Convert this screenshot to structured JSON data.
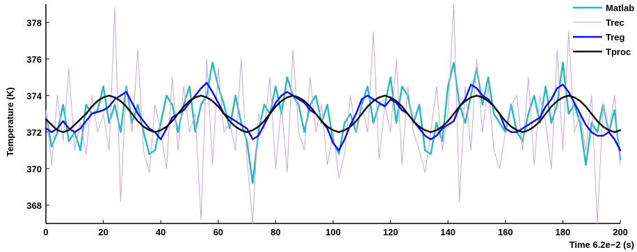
{
  "chart_data": {
    "type": "line",
    "title": "",
    "xlabel": "Time 6.2e−2 (s)",
    "ylabel": "Temperature (K)",
    "xlim": [
      0,
      200
    ],
    "ylim": [
      367,
      379
    ],
    "x_ticks": [
      "0",
      "20",
      "40",
      "60",
      "80",
      "100",
      "120",
      "140",
      "160",
      "180",
      "200"
    ],
    "y_ticks": [
      "368",
      "370",
      "372",
      "374",
      "376",
      "378"
    ],
    "grid": false,
    "legend_position": "top-right",
    "x": [
      0,
      2,
      4,
      6,
      8,
      10,
      12,
      14,
      16,
      18,
      20,
      22,
      24,
      26,
      28,
      30,
      32,
      34,
      36,
      38,
      40,
      42,
      44,
      46,
      48,
      50,
      52,
      54,
      56,
      58,
      60,
      62,
      64,
      66,
      68,
      70,
      72,
      74,
      76,
      78,
      80,
      82,
      84,
      86,
      88,
      90,
      92,
      94,
      96,
      98,
      100,
      102,
      104,
      106,
      108,
      110,
      112,
      114,
      116,
      118,
      120,
      122,
      124,
      126,
      128,
      130,
      132,
      134,
      136,
      138,
      140,
      142,
      144,
      146,
      148,
      150,
      152,
      154,
      156,
      158,
      160,
      162,
      164,
      166,
      168,
      170,
      172,
      174,
      176,
      178,
      180,
      182,
      184,
      186,
      188,
      190,
      192,
      194,
      196,
      198,
      200
    ],
    "series": [
      {
        "name": "Matlab",
        "color": "#2bb8c0",
        "width": 2.5,
        "values": [
          373.0,
          371.2,
          372.0,
          373.5,
          371.5,
          372.0,
          371.0,
          373.5,
          373.0,
          373.2,
          374.5,
          372.5,
          373.5,
          372.0,
          374.5,
          372.5,
          373.5,
          372.0,
          370.8,
          371.0,
          372.5,
          374.0,
          373.5,
          372.0,
          373.5,
          374.5,
          372.0,
          373.5,
          374.0,
          375.8,
          374.5,
          373.5,
          372.2,
          374.0,
          372.5,
          371.5,
          369.2,
          372.0,
          373.5,
          373.0,
          374.5,
          373.0,
          375.0,
          374.0,
          373.5,
          372.0,
          373.5,
          374.0,
          372.5,
          373.5,
          371.5,
          370.8,
          372.5,
          373.0,
          372.0,
          373.5,
          374.5,
          372.5,
          373.5,
          373.5,
          375.0,
          372.5,
          374.5,
          374.0,
          372.5,
          373.5,
          371.0,
          370.8,
          372.5,
          371.5,
          374.5,
          375.8,
          373.5,
          372.5,
          374.0,
          375.5,
          373.5,
          375.0,
          373.0,
          372.5,
          372.0,
          373.5,
          372.0,
          371.5,
          373.0,
          374.0,
          372.5,
          374.5,
          372.5,
          373.5,
          375.8,
          373.0,
          373.5,
          372.5,
          370.2,
          372.5,
          372.0,
          373.5,
          372.0,
          373.2,
          370.5
        ]
      },
      {
        "name": "Trec",
        "color": "#c9a6e2",
        "width": 1,
        "values": [
          373.2,
          370.2,
          374.0,
          371.5,
          375.5,
          371.0,
          372.5,
          370.8,
          374.0,
          372.0,
          373.0,
          371.0,
          378.8,
          368.2,
          374.5,
          372.0,
          376.5,
          371.0,
          369.8,
          373.5,
          372.0,
          370.0,
          375.0,
          371.0,
          374.5,
          372.0,
          373.0,
          367.2,
          376.0,
          370.2,
          375.5,
          372.0,
          372.5,
          371.0,
          376.0,
          370.5,
          367.0,
          373.0,
          372.2,
          375.0,
          370.0,
          373.5,
          369.8,
          376.5,
          372.0,
          371.0,
          375.0,
          372.0,
          373.5,
          370.2,
          372.0,
          369.5,
          370.8,
          374.0,
          372.0,
          373.5,
          372.0,
          377.5,
          370.5,
          373.5,
          372.0,
          376.0,
          370.2,
          374.5,
          372.0,
          371.0,
          369.8,
          372.0,
          374.5,
          371.0,
          373.0,
          379.0,
          368.2,
          374.5,
          371.0,
          376.0,
          372.0,
          374.5,
          371.0,
          370.0,
          372.0,
          373.5,
          374.0,
          371.0,
          375.0,
          370.2,
          374.0,
          372.5,
          370.0,
          376.5,
          371.0,
          377.5,
          372.0,
          373.0,
          371.0,
          374.0,
          367.0,
          373.5,
          372.0,
          374.0,
          370.2
        ]
      },
      {
        "name": "Treg",
        "color": "#1010ee",
        "width": 2.5,
        "values": [
          372.2,
          372.0,
          372.2,
          372.6,
          372.2,
          372.0,
          372.2,
          372.6,
          373.0,
          373.1,
          373.2,
          373.4,
          373.8,
          374.0,
          374.2,
          373.6,
          373.0,
          372.6,
          372.2,
          372.0,
          371.6,
          372.2,
          372.8,
          373.0,
          373.2,
          373.6,
          374.0,
          374.4,
          374.7,
          374.2,
          373.6,
          373.0,
          372.8,
          372.6,
          372.4,
          372.2,
          371.6,
          371.8,
          372.4,
          373.0,
          373.6,
          374.0,
          374.2,
          374.0,
          373.8,
          373.6,
          373.2,
          373.0,
          372.6,
          372.2,
          371.4,
          371.0,
          371.6,
          372.4,
          373.0,
          373.8,
          374.0,
          373.8,
          373.6,
          373.4,
          373.8,
          373.6,
          373.2,
          373.0,
          372.6,
          372.2,
          371.8,
          371.6,
          371.8,
          372.2,
          372.4,
          372.6,
          373.4,
          373.8,
          374.6,
          374.4,
          374.0,
          373.8,
          373.4,
          373.0,
          372.2,
          372.0,
          372.0,
          372.2,
          372.4,
          372.6,
          372.8,
          373.4,
          373.8,
          374.4,
          374.6,
          374.2,
          373.6,
          373.0,
          372.4,
          372.0,
          371.8,
          371.8,
          372.0,
          371.6,
          371.0
        ]
      },
      {
        "name": "Tproc",
        "color": "#111111",
        "width": 2.5,
        "values": [
          372.7,
          372.4,
          372.1,
          372.0,
          372.1,
          372.4,
          372.7,
          373.0,
          373.4,
          373.7,
          373.9,
          374.0,
          373.9,
          373.7,
          373.4,
          373.0,
          372.6,
          372.3,
          372.1,
          372.0,
          372.1,
          372.3,
          372.6,
          373.0,
          373.4,
          373.7,
          373.9,
          374.0,
          373.9,
          373.7,
          373.4,
          373.0,
          372.6,
          372.3,
          372.1,
          372.0,
          372.1,
          372.3,
          372.6,
          373.0,
          373.4,
          373.7,
          373.9,
          374.0,
          373.9,
          373.7,
          373.4,
          373.0,
          372.6,
          372.3,
          372.1,
          372.0,
          372.1,
          372.3,
          372.6,
          373.0,
          373.4,
          373.7,
          373.9,
          374.0,
          373.9,
          373.7,
          373.4,
          373.0,
          372.6,
          372.3,
          372.1,
          372.0,
          372.1,
          372.3,
          372.6,
          373.0,
          373.4,
          373.7,
          373.9,
          374.0,
          373.9,
          373.7,
          373.4,
          373.0,
          372.6,
          372.3,
          372.1,
          372.0,
          372.1,
          372.3,
          372.6,
          373.0,
          373.4,
          373.7,
          373.9,
          374.0,
          373.9,
          373.7,
          373.4,
          373.0,
          372.6,
          372.3,
          372.1,
          372.0,
          372.1
        ]
      }
    ]
  }
}
